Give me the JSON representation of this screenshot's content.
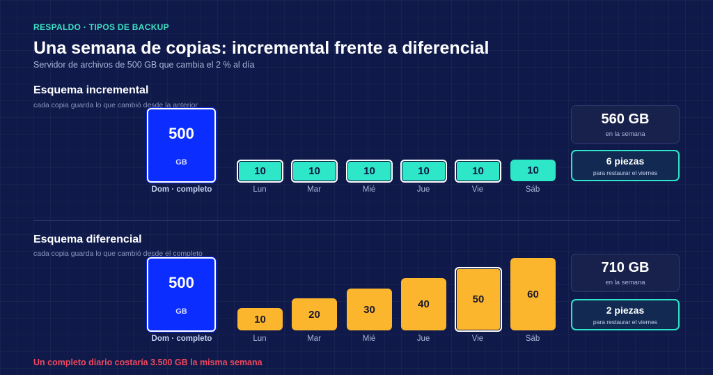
{
  "eyebrow": "RESPALDO · TIPOS DE BACKUP",
  "title": "Una semana de copias: incremental frente a diferencial",
  "subtitle": "Servidor de archivos de 500 GB que cambia el 2 % al día",
  "incremental": {
    "title": "Esquema incremental",
    "description": "cada copia guarda lo que cambió desde la anterior",
    "full": {
      "value": "500",
      "unit": "GB",
      "label": "Dom · completo"
    },
    "days": [
      {
        "day": "Lun",
        "value": "10"
      },
      {
        "day": "Mar",
        "value": "10"
      },
      {
        "day": "Mié",
        "value": "10"
      },
      {
        "day": "Jue",
        "value": "10"
      },
      {
        "day": "Vie",
        "value": "10"
      },
      {
        "day": "Sáb",
        "value": "10"
      }
    ],
    "total": "560 GB",
    "total_label": "en la semana",
    "pieces": "6 piezas",
    "pieces_label": "para restaurar el viernes"
  },
  "differential": {
    "title": "Esquema diferencial",
    "description": "cada copia guarda lo que cambió desde el completo",
    "full": {
      "value": "500",
      "unit": "GB",
      "label": "Dom · completo"
    },
    "days": [
      {
        "day": "Lun",
        "value": "10"
      },
      {
        "day": "Mar",
        "value": "20"
      },
      {
        "day": "Mié",
        "value": "30"
      },
      {
        "day": "Jue",
        "value": "40"
      },
      {
        "day": "Vie",
        "value": "50"
      },
      {
        "day": "Sáb",
        "value": "60"
      }
    ],
    "total": "710 GB",
    "total_label": "en la semana",
    "pieces": "2 piezas",
    "pieces_label": "para restaurar el viernes"
  },
  "footnote": "Un completo diario costaría 3.500 GB la misma semana",
  "colors": {
    "accent": "#3de0c0",
    "full_backup": "#0b2dff",
    "incremental": "#2ee6c8",
    "differential": "#fbb62e",
    "alert": "#f0485e"
  }
}
